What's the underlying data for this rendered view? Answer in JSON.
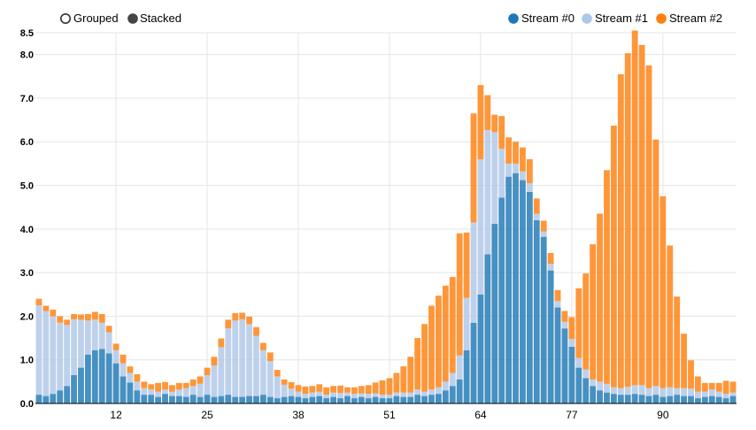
{
  "controls": {
    "options": [
      {
        "label": "Grouped",
        "selected": false
      },
      {
        "label": "Stacked",
        "selected": true
      }
    ]
  },
  "legend": [
    {
      "label": "Stream #0",
      "color": "#1f77b4"
    },
    {
      "label": "Stream #1",
      "color": "#aec7e8"
    },
    {
      "label": "Stream #2",
      "color": "#ff7f0e"
    }
  ],
  "chart_data": {
    "type": "bar",
    "stacked": true,
    "title": "",
    "xlabel": "",
    "ylabel": "",
    "x": [
      1,
      2,
      3,
      4,
      5,
      6,
      7,
      8,
      9,
      10,
      11,
      12,
      13,
      14,
      15,
      16,
      17,
      18,
      19,
      20,
      21,
      22,
      23,
      24,
      25,
      26,
      27,
      28,
      29,
      30,
      31,
      32,
      33,
      34,
      35,
      36,
      37,
      38,
      39,
      40,
      41,
      42,
      43,
      44,
      45,
      46,
      47,
      48,
      49,
      50,
      51,
      52,
      53,
      54,
      55,
      56,
      57,
      58,
      59,
      60,
      61,
      62,
      63,
      64,
      65,
      66,
      67,
      68,
      69,
      70,
      71,
      72,
      73,
      74,
      75,
      76,
      77,
      78,
      79,
      80,
      81,
      82,
      83,
      84,
      85,
      86,
      87,
      88,
      89,
      90,
      91,
      92,
      93,
      94,
      95,
      96,
      97,
      98,
      99,
      100
    ],
    "x_ticks": [
      12,
      25,
      38,
      51,
      64,
      77,
      90
    ],
    "y_ticks": [
      "0.0",
      "1.0",
      "2.0",
      "3.0",
      "4.0",
      "5.0",
      "6.0",
      "7.0",
      "8.0",
      "8.5"
    ],
    "ylim": [
      0,
      8.5
    ],
    "grid": true,
    "legend_position": "top-right",
    "series": [
      {
        "name": "Stream #0",
        "color": "#1f77b4",
        "values": [
          0.2,
          0.17,
          0.22,
          0.3,
          0.4,
          0.65,
          0.82,
          1.12,
          1.22,
          1.25,
          1.15,
          0.92,
          0.62,
          0.48,
          0.3,
          0.2,
          0.2,
          0.15,
          0.22,
          0.17,
          0.17,
          0.15,
          0.2,
          0.15,
          0.2,
          0.15,
          0.17,
          0.2,
          0.15,
          0.15,
          0.17,
          0.17,
          0.2,
          0.15,
          0.12,
          0.15,
          0.17,
          0.15,
          0.12,
          0.15,
          0.17,
          0.12,
          0.15,
          0.12,
          0.17,
          0.12,
          0.15,
          0.12,
          0.15,
          0.12,
          0.12,
          0.17,
          0.15,
          0.15,
          0.2,
          0.17,
          0.2,
          0.22,
          0.3,
          0.4,
          0.55,
          1.22,
          1.85,
          2.5,
          3.42,
          4.12,
          4.72,
          5.2,
          5.28,
          5.12,
          4.85,
          4.2,
          3.82,
          3.05,
          2.2,
          1.72,
          1.3,
          0.82,
          0.58,
          0.4,
          0.3,
          0.25,
          0.22,
          0.2,
          0.2,
          0.22,
          0.2,
          0.17,
          0.2,
          0.15,
          0.17,
          0.2,
          0.17,
          0.17,
          0.12,
          0.15,
          0.17,
          0.15,
          0.12,
          0.17
        ]
      },
      {
        "name": "Stream #1",
        "color": "#aec7e8",
        "values": [
          2.05,
          1.95,
          1.78,
          1.55,
          1.4,
          1.28,
          1.1,
          0.78,
          0.7,
          0.6,
          0.48,
          0.3,
          0.3,
          0.22,
          0.2,
          0.15,
          0.12,
          0.12,
          0.1,
          0.1,
          0.15,
          0.2,
          0.2,
          0.3,
          0.45,
          0.72,
          1.12,
          1.52,
          1.75,
          1.78,
          1.65,
          1.38,
          1.02,
          0.82,
          0.5,
          0.28,
          0.17,
          0.12,
          0.1,
          0.1,
          0.1,
          0.08,
          0.1,
          0.12,
          0.08,
          0.1,
          0.08,
          0.1,
          0.08,
          0.08,
          0.08,
          0.08,
          0.1,
          0.1,
          0.12,
          0.1,
          0.12,
          0.15,
          0.2,
          0.3,
          0.55,
          1.2,
          2.3,
          3.1,
          2.85,
          2.1,
          1.12,
          0.3,
          0.22,
          0.2,
          0.2,
          0.15,
          0.12,
          0.15,
          0.15,
          0.15,
          0.18,
          0.22,
          0.2,
          0.15,
          0.2,
          0.2,
          0.15,
          0.15,
          0.18,
          0.2,
          0.22,
          0.18,
          0.2,
          0.2,
          0.2,
          0.15,
          0.18,
          0.17,
          0.15,
          0.12,
          0.15,
          0.12,
          0.1,
          0.08
        ]
      },
      {
        "name": "Stream #2",
        "color": "#ff7f0e",
        "values": [
          0.15,
          0.12,
          0.15,
          0.15,
          0.12,
          0.12,
          0.12,
          0.15,
          0.18,
          0.2,
          0.15,
          0.15,
          0.2,
          0.15,
          0.17,
          0.15,
          0.12,
          0.2,
          0.17,
          0.15,
          0.15,
          0.12,
          0.15,
          0.17,
          0.17,
          0.2,
          0.2,
          0.2,
          0.17,
          0.15,
          0.17,
          0.2,
          0.17,
          0.2,
          0.15,
          0.12,
          0.15,
          0.15,
          0.17,
          0.15,
          0.17,
          0.17,
          0.15,
          0.17,
          0.12,
          0.15,
          0.17,
          0.2,
          0.25,
          0.33,
          0.38,
          0.45,
          0.6,
          0.82,
          1.18,
          1.55,
          1.92,
          2.1,
          2.2,
          2.2,
          2.8,
          1.5,
          2.5,
          1.7,
          0.8,
          0.4,
          0.75,
          0.6,
          0.5,
          0.55,
          0.55,
          0.35,
          0.25,
          0.25,
          0.25,
          0.25,
          0.5,
          1.6,
          2.2,
          3.1,
          3.85,
          4.9,
          6.0,
          7.2,
          7.65,
          8.13,
          7.8,
          7.4,
          5.65,
          4.4,
          3.25,
          2.1,
          1.25,
          0.65,
          0.35,
          0.2,
          0.15,
          0.2,
          0.3,
          0.25
        ]
      }
    ]
  }
}
